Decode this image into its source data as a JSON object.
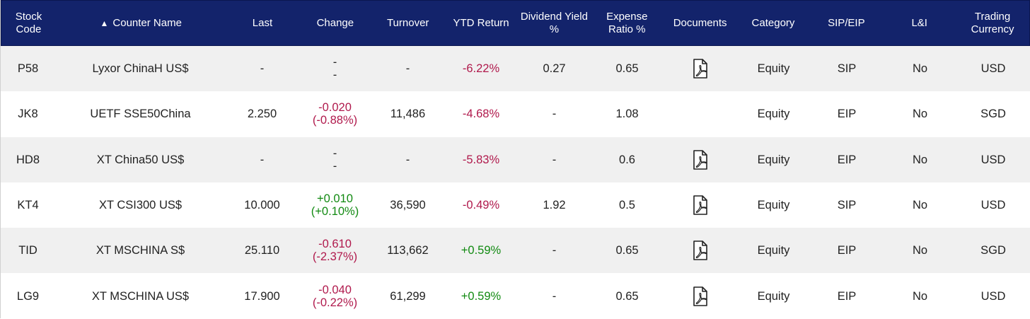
{
  "headers": [
    "Stock\nCode",
    "Counter Name",
    "Last",
    "Change",
    "Turnover",
    "YTD Return",
    "Dividend Yield\n%",
    "Expense\nRatio %",
    "Documents",
    "Category",
    "SIP/EIP",
    "L&I",
    "Trading\nCurrency"
  ],
  "sort_indicator": "▲",
  "icons": {
    "document": "pdf-document-icon"
  },
  "colors": {
    "header_bg": "#13236b",
    "negative": "#b0194c",
    "positive": "#128a12"
  },
  "rows": [
    {
      "code": "P58",
      "name": "Lyxor ChinaH US$",
      "last": "-",
      "change_abs": "-",
      "change_pct": "-",
      "change_dir": "none",
      "turnover": "-",
      "ytd": "-6.22%",
      "ytd_dir": "neg",
      "div_yield": "0.27",
      "expense": "0.65",
      "has_doc": true,
      "category": "Equity",
      "sip_eip": "SIP",
      "li": "No",
      "currency": "USD"
    },
    {
      "code": "JK8",
      "name": "UETF SSE50China",
      "last": "2.250",
      "change_abs": "-0.020",
      "change_pct": "(-0.88%)",
      "change_dir": "neg",
      "turnover": "11,486",
      "ytd": "-4.68%",
      "ytd_dir": "neg",
      "div_yield": "-",
      "expense": "1.08",
      "has_doc": false,
      "category": "Equity",
      "sip_eip": "EIP",
      "li": "No",
      "currency": "SGD"
    },
    {
      "code": "HD8",
      "name": "XT China50 US$",
      "last": "-",
      "change_abs": "-",
      "change_pct": "-",
      "change_dir": "none",
      "turnover": "-",
      "ytd": "-5.83%",
      "ytd_dir": "neg",
      "div_yield": "-",
      "expense": "0.6",
      "has_doc": true,
      "category": "Equity",
      "sip_eip": "EIP",
      "li": "No",
      "currency": "USD"
    },
    {
      "code": "KT4",
      "name": "XT CSI300 US$",
      "last": "10.000",
      "change_abs": "+0.010",
      "change_pct": "(+0.10%)",
      "change_dir": "pos",
      "turnover": "36,590",
      "ytd": "-0.49%",
      "ytd_dir": "neg",
      "div_yield": "1.92",
      "expense": "0.5",
      "has_doc": true,
      "category": "Equity",
      "sip_eip": "SIP",
      "li": "No",
      "currency": "USD"
    },
    {
      "code": "TID",
      "name": "XT MSCHINA S$",
      "last": "25.110",
      "change_abs": "-0.610",
      "change_pct": "(-2.37%)",
      "change_dir": "neg",
      "turnover": "113,662",
      "ytd": "+0.59%",
      "ytd_dir": "pos",
      "div_yield": "-",
      "expense": "0.65",
      "has_doc": true,
      "category": "Equity",
      "sip_eip": "EIP",
      "li": "No",
      "currency": "SGD"
    },
    {
      "code": "LG9",
      "name": "XT MSCHINA US$",
      "last": "17.900",
      "change_abs": "-0.040",
      "change_pct": "(-0.22%)",
      "change_dir": "neg",
      "turnover": "61,299",
      "ytd": "+0.59%",
      "ytd_dir": "pos",
      "div_yield": "-",
      "expense": "0.65",
      "has_doc": true,
      "category": "Equity",
      "sip_eip": "EIP",
      "li": "No",
      "currency": "USD"
    }
  ]
}
